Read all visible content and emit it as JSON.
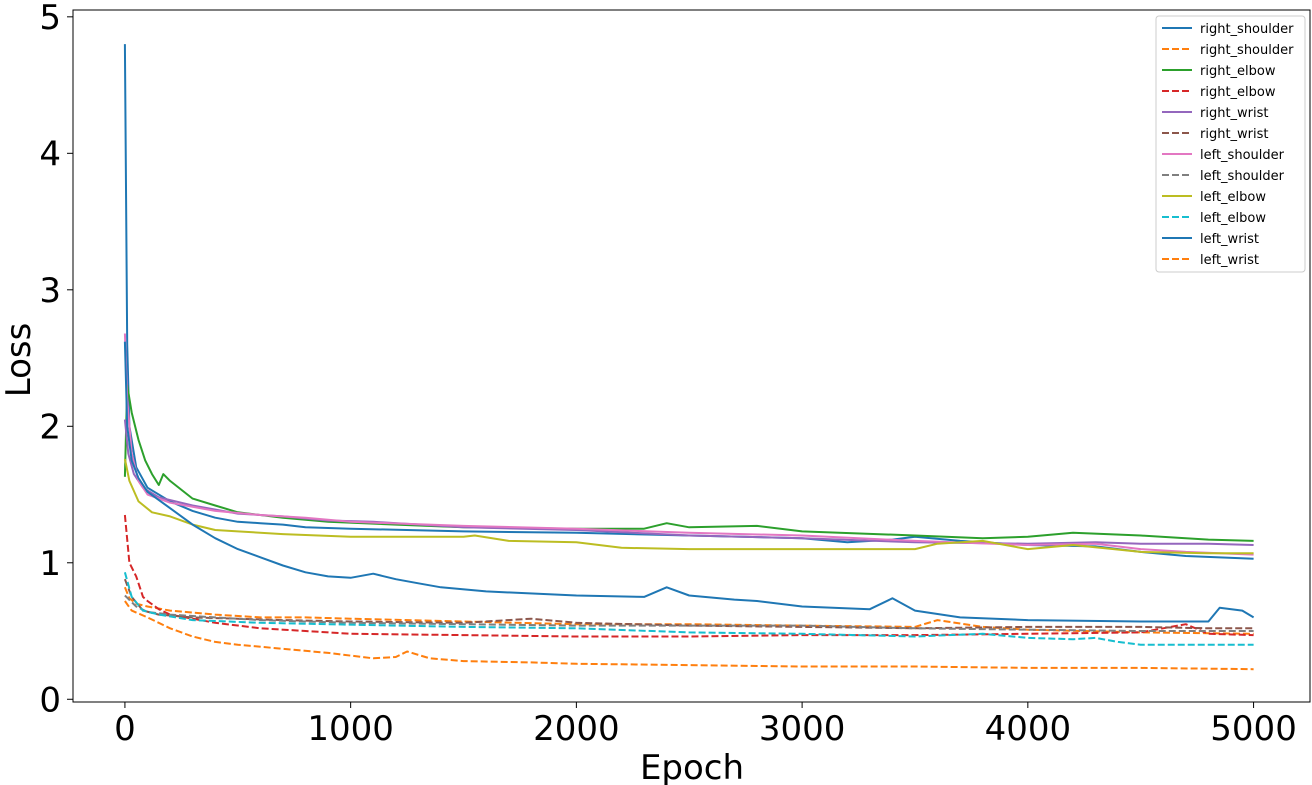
{
  "chart_data": {
    "type": "line",
    "title": "",
    "xlabel": "Epoch",
    "ylabel": "Loss",
    "xlim": [
      -230,
      5250
    ],
    "ylim": [
      -0.02,
      5.05
    ],
    "xticks": [
      0,
      1000,
      2000,
      3000,
      4000,
      5000
    ],
    "yticks": [
      0,
      1,
      2,
      3,
      4,
      5
    ],
    "xtick_labels": [
      "0",
      "1000",
      "2000",
      "3000",
      "4000",
      "5000"
    ],
    "ytick_labels": [
      "0",
      "1",
      "2",
      "3",
      "4",
      "5"
    ],
    "grid": false,
    "legend_position": "top-right",
    "series": [
      {
        "name": "right_shoulder",
        "style": "solid",
        "color": "#1f77b4",
        "points": [
          [
            0,
            4.8
          ],
          [
            10,
            2.6
          ],
          [
            20,
            2.0
          ],
          [
            50,
            1.7
          ],
          [
            100,
            1.55
          ],
          [
            200,
            1.45
          ],
          [
            300,
            1.38
          ],
          [
            400,
            1.33
          ],
          [
            500,
            1.3
          ],
          [
            600,
            1.29
          ],
          [
            700,
            1.28
          ],
          [
            800,
            1.26
          ],
          [
            1000,
            1.25
          ],
          [
            1500,
            1.23
          ],
          [
            2000,
            1.22
          ],
          [
            2500,
            1.2
          ],
          [
            3000,
            1.18
          ],
          [
            3200,
            1.15
          ],
          [
            3400,
            1.17
          ],
          [
            3500,
            1.19
          ],
          [
            3700,
            1.16
          ],
          [
            4000,
            1.13
          ],
          [
            4300,
            1.12
          ],
          [
            4500,
            1.08
          ],
          [
            4700,
            1.05
          ],
          [
            5000,
            1.03
          ]
        ]
      },
      {
        "name": "right_shoulder",
        "style": "dashed",
        "color": "#ff7f0e",
        "points": [
          [
            0,
            0.82
          ],
          [
            20,
            0.74
          ],
          [
            50,
            0.7
          ],
          [
            100,
            0.68
          ],
          [
            200,
            0.65
          ],
          [
            400,
            0.62
          ],
          [
            600,
            0.6
          ],
          [
            800,
            0.6
          ],
          [
            1000,
            0.59
          ],
          [
            1500,
            0.57
          ],
          [
            2000,
            0.55
          ],
          [
            2500,
            0.55
          ],
          [
            3000,
            0.54
          ],
          [
            3500,
            0.53
          ],
          [
            3600,
            0.58
          ],
          [
            3800,
            0.53
          ],
          [
            4000,
            0.51
          ],
          [
            4500,
            0.49
          ],
          [
            5000,
            0.48
          ]
        ]
      },
      {
        "name": "right_elbow",
        "style": "solid",
        "color": "#2ca02c",
        "points": [
          [
            0,
            1.63
          ],
          [
            10,
            2.3
          ],
          [
            30,
            2.1
          ],
          [
            60,
            1.9
          ],
          [
            90,
            1.75
          ],
          [
            120,
            1.65
          ],
          [
            150,
            1.57
          ],
          [
            170,
            1.65
          ],
          [
            200,
            1.6
          ],
          [
            300,
            1.47
          ],
          [
            400,
            1.42
          ],
          [
            500,
            1.37
          ],
          [
            700,
            1.33
          ],
          [
            900,
            1.3
          ],
          [
            1200,
            1.28
          ],
          [
            1500,
            1.26
          ],
          [
            2000,
            1.25
          ],
          [
            2300,
            1.25
          ],
          [
            2400,
            1.29
          ],
          [
            2500,
            1.26
          ],
          [
            2800,
            1.27
          ],
          [
            3000,
            1.23
          ],
          [
            3500,
            1.2
          ],
          [
            3800,
            1.18
          ],
          [
            4000,
            1.19
          ],
          [
            4200,
            1.22
          ],
          [
            4500,
            1.2
          ],
          [
            4800,
            1.17
          ],
          [
            5000,
            1.16
          ]
        ]
      },
      {
        "name": "right_elbow",
        "style": "dashed",
        "color": "#d62728",
        "points": [
          [
            0,
            1.35
          ],
          [
            20,
            1.0
          ],
          [
            50,
            0.9
          ],
          [
            80,
            0.75
          ],
          [
            100,
            0.72
          ],
          [
            150,
            0.66
          ],
          [
            200,
            0.62
          ],
          [
            400,
            0.56
          ],
          [
            600,
            0.52
          ],
          [
            800,
            0.5
          ],
          [
            1000,
            0.48
          ],
          [
            1500,
            0.47
          ],
          [
            2000,
            0.46
          ],
          [
            2500,
            0.46
          ],
          [
            3000,
            0.47
          ],
          [
            3500,
            0.47
          ],
          [
            4000,
            0.48
          ],
          [
            4500,
            0.49
          ],
          [
            4700,
            0.55
          ],
          [
            4800,
            0.48
          ],
          [
            5000,
            0.47
          ]
        ]
      },
      {
        "name": "right_wrist",
        "style": "solid",
        "color": "#9467bd",
        "points": [
          [
            0,
            2.05
          ],
          [
            15,
            1.8
          ],
          [
            40,
            1.65
          ],
          [
            80,
            1.55
          ],
          [
            150,
            1.48
          ],
          [
            300,
            1.42
          ],
          [
            500,
            1.36
          ],
          [
            700,
            1.34
          ],
          [
            900,
            1.31
          ],
          [
            1100,
            1.3
          ],
          [
            1500,
            1.26
          ],
          [
            2000,
            1.24
          ],
          [
            2500,
            1.2
          ],
          [
            3000,
            1.18
          ],
          [
            3500,
            1.15
          ],
          [
            4000,
            1.14
          ],
          [
            4300,
            1.15
          ],
          [
            4500,
            1.14
          ],
          [
            4800,
            1.14
          ],
          [
            5000,
            1.13
          ]
        ]
      },
      {
        "name": "right_wrist",
        "style": "dashed",
        "color": "#8c564b",
        "points": [
          [
            0,
            0.88
          ],
          [
            30,
            0.75
          ],
          [
            80,
            0.65
          ],
          [
            150,
            0.62
          ],
          [
            300,
            0.6
          ],
          [
            500,
            0.59
          ],
          [
            700,
            0.58
          ],
          [
            1000,
            0.57
          ],
          [
            1500,
            0.56
          ],
          [
            1800,
            0.59
          ],
          [
            2000,
            0.56
          ],
          [
            2500,
            0.54
          ],
          [
            3000,
            0.53
          ],
          [
            3500,
            0.52
          ],
          [
            4000,
            0.53
          ],
          [
            4500,
            0.53
          ],
          [
            4800,
            0.52
          ],
          [
            5000,
            0.52
          ]
        ]
      },
      {
        "name": "left_shoulder",
        "style": "solid",
        "color": "#e377c2",
        "points": [
          [
            0,
            2.68
          ],
          [
            10,
            2.2
          ],
          [
            30,
            1.8
          ],
          [
            60,
            1.6
          ],
          [
            100,
            1.5
          ],
          [
            200,
            1.44
          ],
          [
            400,
            1.38
          ],
          [
            600,
            1.35
          ],
          [
            800,
            1.33
          ],
          [
            1000,
            1.3
          ],
          [
            1500,
            1.27
          ],
          [
            2000,
            1.25
          ],
          [
            2500,
            1.22
          ],
          [
            3000,
            1.2
          ],
          [
            3500,
            1.16
          ],
          [
            4000,
            1.13
          ],
          [
            4300,
            1.14
          ],
          [
            4500,
            1.1
          ],
          [
            4700,
            1.08
          ],
          [
            5000,
            1.06
          ]
        ]
      },
      {
        "name": "left_shoulder",
        "style": "dashed",
        "color": "#7f7f7f",
        "points": [
          [
            0,
            0.76
          ],
          [
            50,
            0.68
          ],
          [
            100,
            0.64
          ],
          [
            200,
            0.62
          ],
          [
            400,
            0.6
          ],
          [
            600,
            0.58
          ],
          [
            800,
            0.57
          ],
          [
            1000,
            0.56
          ],
          [
            1500,
            0.55
          ],
          [
            2000,
            0.54
          ],
          [
            2500,
            0.54
          ],
          [
            3000,
            0.54
          ],
          [
            3500,
            0.52
          ],
          [
            4000,
            0.51
          ],
          [
            4500,
            0.5
          ],
          [
            5000,
            0.5
          ]
        ]
      },
      {
        "name": "left_elbow",
        "style": "solid",
        "color": "#bcbd22",
        "points": [
          [
            0,
            1.76
          ],
          [
            20,
            1.6
          ],
          [
            60,
            1.45
          ],
          [
            120,
            1.37
          ],
          [
            200,
            1.34
          ],
          [
            300,
            1.28
          ],
          [
            400,
            1.24
          ],
          [
            500,
            1.23
          ],
          [
            700,
            1.21
          ],
          [
            1000,
            1.19
          ],
          [
            1500,
            1.19
          ],
          [
            1550,
            1.2
          ],
          [
            1700,
            1.16
          ],
          [
            2000,
            1.15
          ],
          [
            2200,
            1.11
          ],
          [
            2500,
            1.1
          ],
          [
            3000,
            1.1
          ],
          [
            3500,
            1.1
          ],
          [
            3600,
            1.14
          ],
          [
            3800,
            1.16
          ],
          [
            4000,
            1.1
          ],
          [
            4200,
            1.13
          ],
          [
            4500,
            1.08
          ],
          [
            4800,
            1.07
          ],
          [
            5000,
            1.07
          ]
        ]
      },
      {
        "name": "left_elbow",
        "style": "dashed",
        "color": "#17becf",
        "points": [
          [
            0,
            0.93
          ],
          [
            30,
            0.75
          ],
          [
            80,
            0.65
          ],
          [
            150,
            0.62
          ],
          [
            300,
            0.58
          ],
          [
            600,
            0.56
          ],
          [
            900,
            0.55
          ],
          [
            1200,
            0.54
          ],
          [
            1500,
            0.53
          ],
          [
            2000,
            0.52
          ],
          [
            2500,
            0.49
          ],
          [
            3000,
            0.48
          ],
          [
            3500,
            0.46
          ],
          [
            3800,
            0.48
          ],
          [
            4000,
            0.45
          ],
          [
            4200,
            0.44
          ],
          [
            4300,
            0.45
          ],
          [
            4400,
            0.42
          ],
          [
            4500,
            0.4
          ],
          [
            5000,
            0.4
          ]
        ]
      },
      {
        "name": "left_wrist",
        "style": "solid",
        "color": "#1f77b4",
        "points": [
          [
            0,
            2.62
          ],
          [
            10,
            2.0
          ],
          [
            30,
            1.75
          ],
          [
            60,
            1.62
          ],
          [
            100,
            1.52
          ],
          [
            200,
            1.4
          ],
          [
            300,
            1.28
          ],
          [
            400,
            1.18
          ],
          [
            500,
            1.1
          ],
          [
            600,
            1.04
          ],
          [
            700,
            0.98
          ],
          [
            800,
            0.93
          ],
          [
            900,
            0.9
          ],
          [
            1000,
            0.89
          ],
          [
            1100,
            0.92
          ],
          [
            1200,
            0.88
          ],
          [
            1300,
            0.85
          ],
          [
            1400,
            0.82
          ],
          [
            1600,
            0.79
          ],
          [
            2000,
            0.76
          ],
          [
            2300,
            0.75
          ],
          [
            2400,
            0.82
          ],
          [
            2500,
            0.76
          ],
          [
            2700,
            0.73
          ],
          [
            2800,
            0.72
          ],
          [
            3000,
            0.68
          ],
          [
            3300,
            0.66
          ],
          [
            3400,
            0.74
          ],
          [
            3500,
            0.65
          ],
          [
            3700,
            0.6
          ],
          [
            4000,
            0.58
          ],
          [
            4500,
            0.57
          ],
          [
            4800,
            0.57
          ],
          [
            4850,
            0.67
          ],
          [
            4950,
            0.65
          ],
          [
            5000,
            0.6
          ]
        ]
      },
      {
        "name": "left_wrist",
        "style": "dashed",
        "color": "#ff7f0e",
        "points": [
          [
            0,
            0.72
          ],
          [
            30,
            0.65
          ],
          [
            100,
            0.6
          ],
          [
            200,
            0.52
          ],
          [
            300,
            0.46
          ],
          [
            400,
            0.42
          ],
          [
            500,
            0.4
          ],
          [
            700,
            0.37
          ],
          [
            900,
            0.34
          ],
          [
            1000,
            0.32
          ],
          [
            1100,
            0.3
          ],
          [
            1200,
            0.31
          ],
          [
            1250,
            0.35
          ],
          [
            1350,
            0.3
          ],
          [
            1500,
            0.28
          ],
          [
            1800,
            0.27
          ],
          [
            2000,
            0.26
          ],
          [
            2500,
            0.25
          ],
          [
            3000,
            0.24
          ],
          [
            3500,
            0.24
          ],
          [
            4000,
            0.23
          ],
          [
            4500,
            0.23
          ],
          [
            5000,
            0.22
          ]
        ]
      }
    ]
  }
}
